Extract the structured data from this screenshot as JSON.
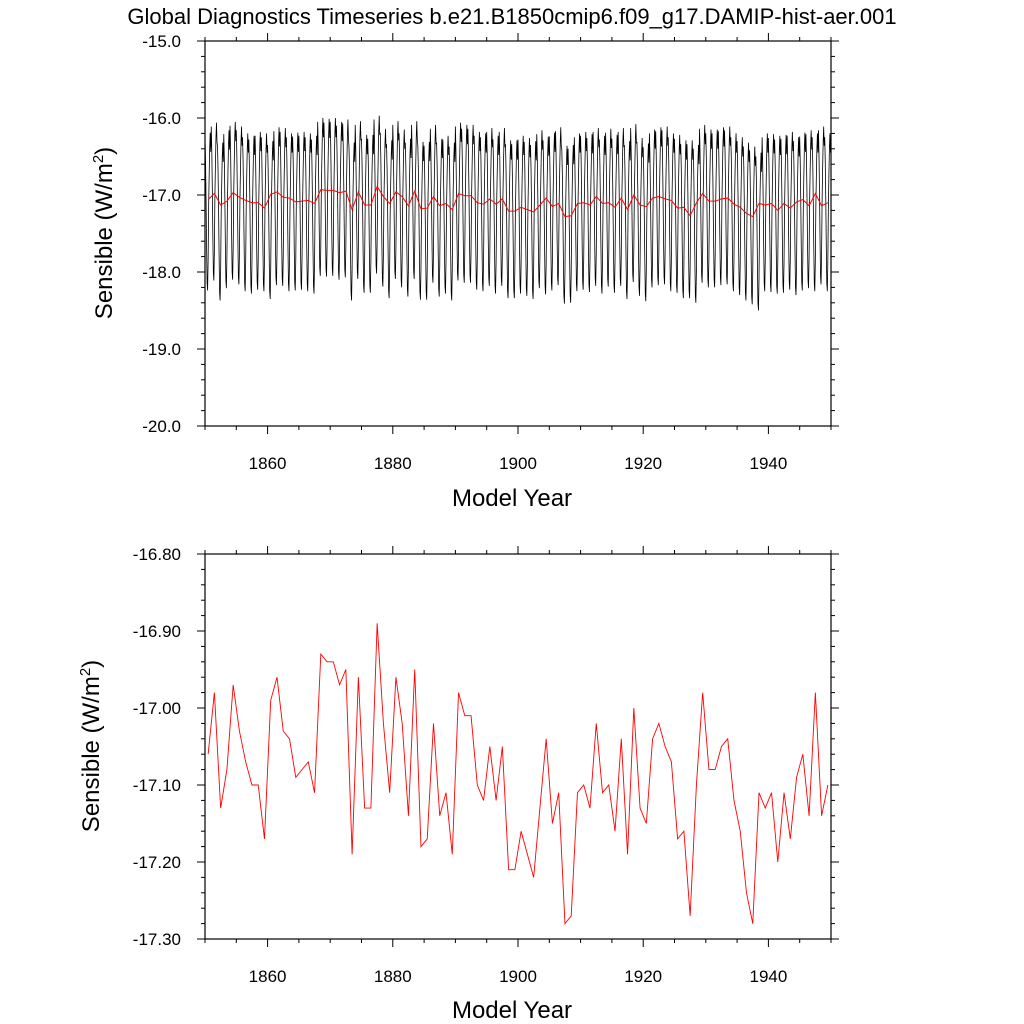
{
  "figure": {
    "title": "Global Diagnostics Timeseries b.e21.B1850cmip6.f09_g17.DAMIP-hist-aer.001"
  },
  "colors": {
    "monthly": "#000000",
    "annual": "#ff0000"
  },
  "chart_data": [
    {
      "type": "line",
      "title": "Global Diagnostics Timeseries b.e21.B1850cmip6.f09_g17.DAMIP-hist-aer.001",
      "xlabel": "Model Year",
      "ylabel": "Sensible (W/m²)",
      "xlim": [
        1850,
        1950
      ],
      "ylim": [
        -20.0,
        -15.0
      ],
      "x_ticks": [
        "1860",
        "1880",
        "1900",
        "1920",
        "1940"
      ],
      "y_ticks": [
        "-15.0",
        "-16.0",
        "-17.0",
        "-18.0",
        "-19.0",
        "-20.0"
      ],
      "grid": false,
      "series": [
        {
          "kind": "monthly",
          "color": "#000000",
          "x_start": 1850.0,
          "x_step": 0.08333,
          "seasonal_cycle": [
            -16.3,
            -16.6,
            -17.1,
            -17.7,
            -18.2,
            -18.3,
            -17.9,
            -17.2,
            -16.8,
            -16.45,
            -16.25,
            -16.5
          ],
          "annual_offset": [
            0.06,
            0.19,
            -0.07,
            0.09,
            0.2,
            0.14,
            0.05,
            0.02,
            0.07,
            0.05,
            -0.05,
            0.13,
            0.12,
            0.05,
            0.06,
            0.07,
            0.05,
            0.02,
            0.25,
            0.24,
            0.25,
            0.2,
            0.23,
            -0.07,
            0.21,
            0.03,
            0.03,
            0.28,
            0.11,
            -0.04,
            0.21,
            0.1,
            -0.02,
            0.21,
            -0.06,
            -0.06,
            0.16,
            -0.02,
            0.02,
            -0.07,
            0.19,
            0.16,
            0.16,
            0.07,
            0.05,
            0.12,
            0.02,
            0.12,
            -0.04,
            -0.04,
            0.02,
            -0.01,
            -0.05,
            0.09,
            0.01,
            0.06,
            0.13,
            -0.11,
            -0.1,
            0.05,
            0.07,
            0.04,
            0.12,
            0.02,
            0.11,
            0.03,
            0.12,
            -0.05,
            0.17,
            -0.01,
            -0.08,
            0.1,
            0.13,
            0.14,
            0.05,
            0.03,
            -0.04,
            -0.04,
            -0.1,
            0.16,
            0.1,
            0.1,
            0.13,
            0.14,
            0.05,
            0.0,
            -0.07,
            -0.12,
            -0.2,
            0.05,
            0.04,
            0.02,
            0.03,
            0.07,
            0.0,
            0.06,
            0.09,
            0.05,
            0.14,
            0.05
          ]
        },
        {
          "kind": "annual",
          "color": "#ff0000",
          "x": [
            1850,
            1851,
            1852,
            1853,
            1854,
            1855,
            1856,
            1857,
            1858,
            1859,
            1860,
            1861,
            1862,
            1863,
            1864,
            1865,
            1866,
            1867,
            1868,
            1869,
            1870,
            1871,
            1872,
            1873,
            1874,
            1875,
            1876,
            1877,
            1878,
            1879,
            1880,
            1881,
            1882,
            1883,
            1884,
            1885,
            1886,
            1887,
            1888,
            1889,
            1890,
            1891,
            1892,
            1893,
            1894,
            1895,
            1896,
            1897,
            1898,
            1899,
            1900,
            1901,
            1902,
            1903,
            1904,
            1905,
            1906,
            1907,
            1908,
            1909,
            1910,
            1911,
            1912,
            1913,
            1914,
            1915,
            1916,
            1917,
            1918,
            1919,
            1920,
            1921,
            1922,
            1923,
            1924,
            1925,
            1926,
            1927,
            1928,
            1929,
            1930,
            1931,
            1932,
            1933,
            1934,
            1935,
            1936,
            1937,
            1938,
            1939,
            1940,
            1941,
            1942,
            1943,
            1944,
            1945,
            1946,
            1947,
            1948,
            1949
          ],
          "y": [
            -17.06,
            -16.98,
            -17.13,
            -17.08,
            -16.97,
            -17.03,
            -17.07,
            -17.1,
            -17.1,
            -17.17,
            -16.99,
            -16.96,
            -17.03,
            -17.04,
            -17.09,
            -17.08,
            -17.07,
            -17.11,
            -16.93,
            -16.94,
            -16.94,
            -16.97,
            -16.95,
            -17.19,
            -16.96,
            -17.13,
            -17.13,
            -16.89,
            -17.02,
            -17.11,
            -16.96,
            -17.02,
            -17.14,
            -16.95,
            -17.18,
            -17.17,
            -17.02,
            -17.14,
            -17.11,
            -17.19,
            -16.98,
            -17.01,
            -17.01,
            -17.1,
            -17.12,
            -17.05,
            -17.12,
            -17.05,
            -17.21,
            -17.21,
            -17.16,
            -17.19,
            -17.22,
            -17.13,
            -17.04,
            -17.15,
            -17.11,
            -17.28,
            -17.27,
            -17.11,
            -17.1,
            -17.13,
            -17.02,
            -17.11,
            -17.1,
            -17.16,
            -17.04,
            -17.19,
            -17.0,
            -17.13,
            -17.15,
            -17.04,
            -17.02,
            -17.05,
            -17.07,
            -17.17,
            -17.16,
            -17.27,
            -17.1,
            -16.98,
            -17.08,
            -17.08,
            -17.05,
            -17.04,
            -17.12,
            -17.16,
            -17.24,
            -17.28,
            -17.11,
            -17.13,
            -17.11,
            -17.2,
            -17.11,
            -17.17,
            -17.09,
            -17.06,
            -17.14,
            -16.98,
            -17.14,
            -17.1
          ]
        }
      ]
    },
    {
      "type": "line",
      "xlabel": "Model Year",
      "ylabel": "Sensible (W/m²)",
      "xlim": [
        1850,
        1950
      ],
      "ylim": [
        -17.3,
        -16.8
      ],
      "x_ticks": [
        "1860",
        "1880",
        "1900",
        "1920",
        "1940"
      ],
      "y_ticks": [
        "-16.80",
        "-16.90",
        "-17.00",
        "-17.10",
        "-17.20",
        "-17.30"
      ],
      "grid": false,
      "series": [
        {
          "kind": "annual",
          "color": "#ff0000",
          "ref": "chart_data.0.series.1"
        }
      ]
    }
  ]
}
